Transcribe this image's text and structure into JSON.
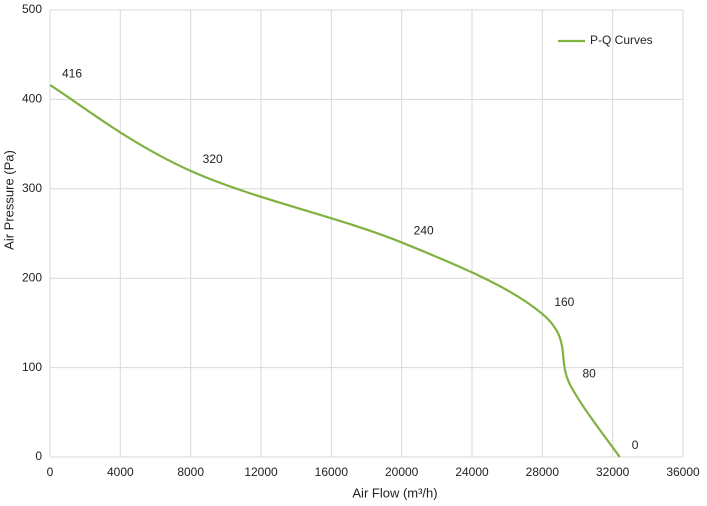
{
  "chart_data": {
    "type": "line",
    "x_label": "Air Flow  (m³/h)",
    "y_label": "Air Pressure  (Pa)",
    "x": [
      0,
      8000,
      20000,
      28000,
      29600,
      32400
    ],
    "series": [
      {
        "name": "P-Q Curves",
        "color": "#7fb241",
        "values": [
          416,
          320,
          240,
          160,
          80,
          0
        ]
      }
    ],
    "xlim": [
      0,
      36000
    ],
    "xticks": [
      0,
      4000,
      8000,
      12000,
      16000,
      20000,
      24000,
      28000,
      32000,
      36000
    ],
    "ylim": [
      0,
      500
    ],
    "yticks": [
      0,
      100,
      200,
      300,
      400,
      500
    ],
    "grid": true,
    "legend": "top-right",
    "data_labels": true
  }
}
